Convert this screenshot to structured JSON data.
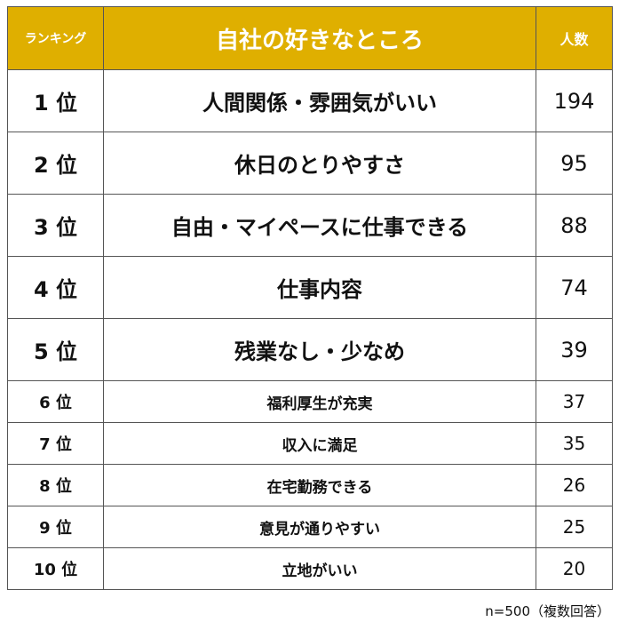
{
  "header": {
    "rank_label": "ランキング",
    "title": "自社の好きなところ",
    "count_label": "人数",
    "header_color": "#dfaf00"
  },
  "rows": [
    {
      "rank": "1 位",
      "item": "人間関係・雰囲気がいい",
      "count": "194"
    },
    {
      "rank": "2 位",
      "item": "休日のとりやすさ",
      "count": "95"
    },
    {
      "rank": "3 位",
      "item": "自由・マイペースに仕事できる",
      "count": "88"
    },
    {
      "rank": "4 位",
      "item": "仕事内容",
      "count": "74"
    },
    {
      "rank": "5 位",
      "item": "残業なし・少なめ",
      "count": "39"
    },
    {
      "rank": "6 位",
      "item": "福利厚生が充実",
      "count": "37"
    },
    {
      "rank": "7 位",
      "item": "収入に満足",
      "count": "35"
    },
    {
      "rank": "8 位",
      "item": "在宅勤務できる",
      "count": "26"
    },
    {
      "rank": "9 位",
      "item": "意見が通りやすい",
      "count": "25"
    },
    {
      "rank": "10 位",
      "item": "立地がいい",
      "count": "20"
    }
  ],
  "footer": {
    "note": "n=500（複数回答）"
  },
  "chart_data": {
    "type": "table",
    "title": "自社の好きなところ",
    "columns": [
      "ランキング",
      "自社の好きなところ",
      "人数"
    ],
    "categories": [
      "人間関係・雰囲気がいい",
      "休日のとりやすさ",
      "自由・マイペースに仕事できる",
      "仕事内容",
      "残業なし・少なめ",
      "福利厚生が充実",
      "収入に満足",
      "在宅勤務できる",
      "意見が通りやすい",
      "立地がいい"
    ],
    "values": [
      194,
      95,
      88,
      74,
      39,
      37,
      35,
      26,
      25,
      20
    ],
    "annotation": "n=500（複数回答）"
  }
}
